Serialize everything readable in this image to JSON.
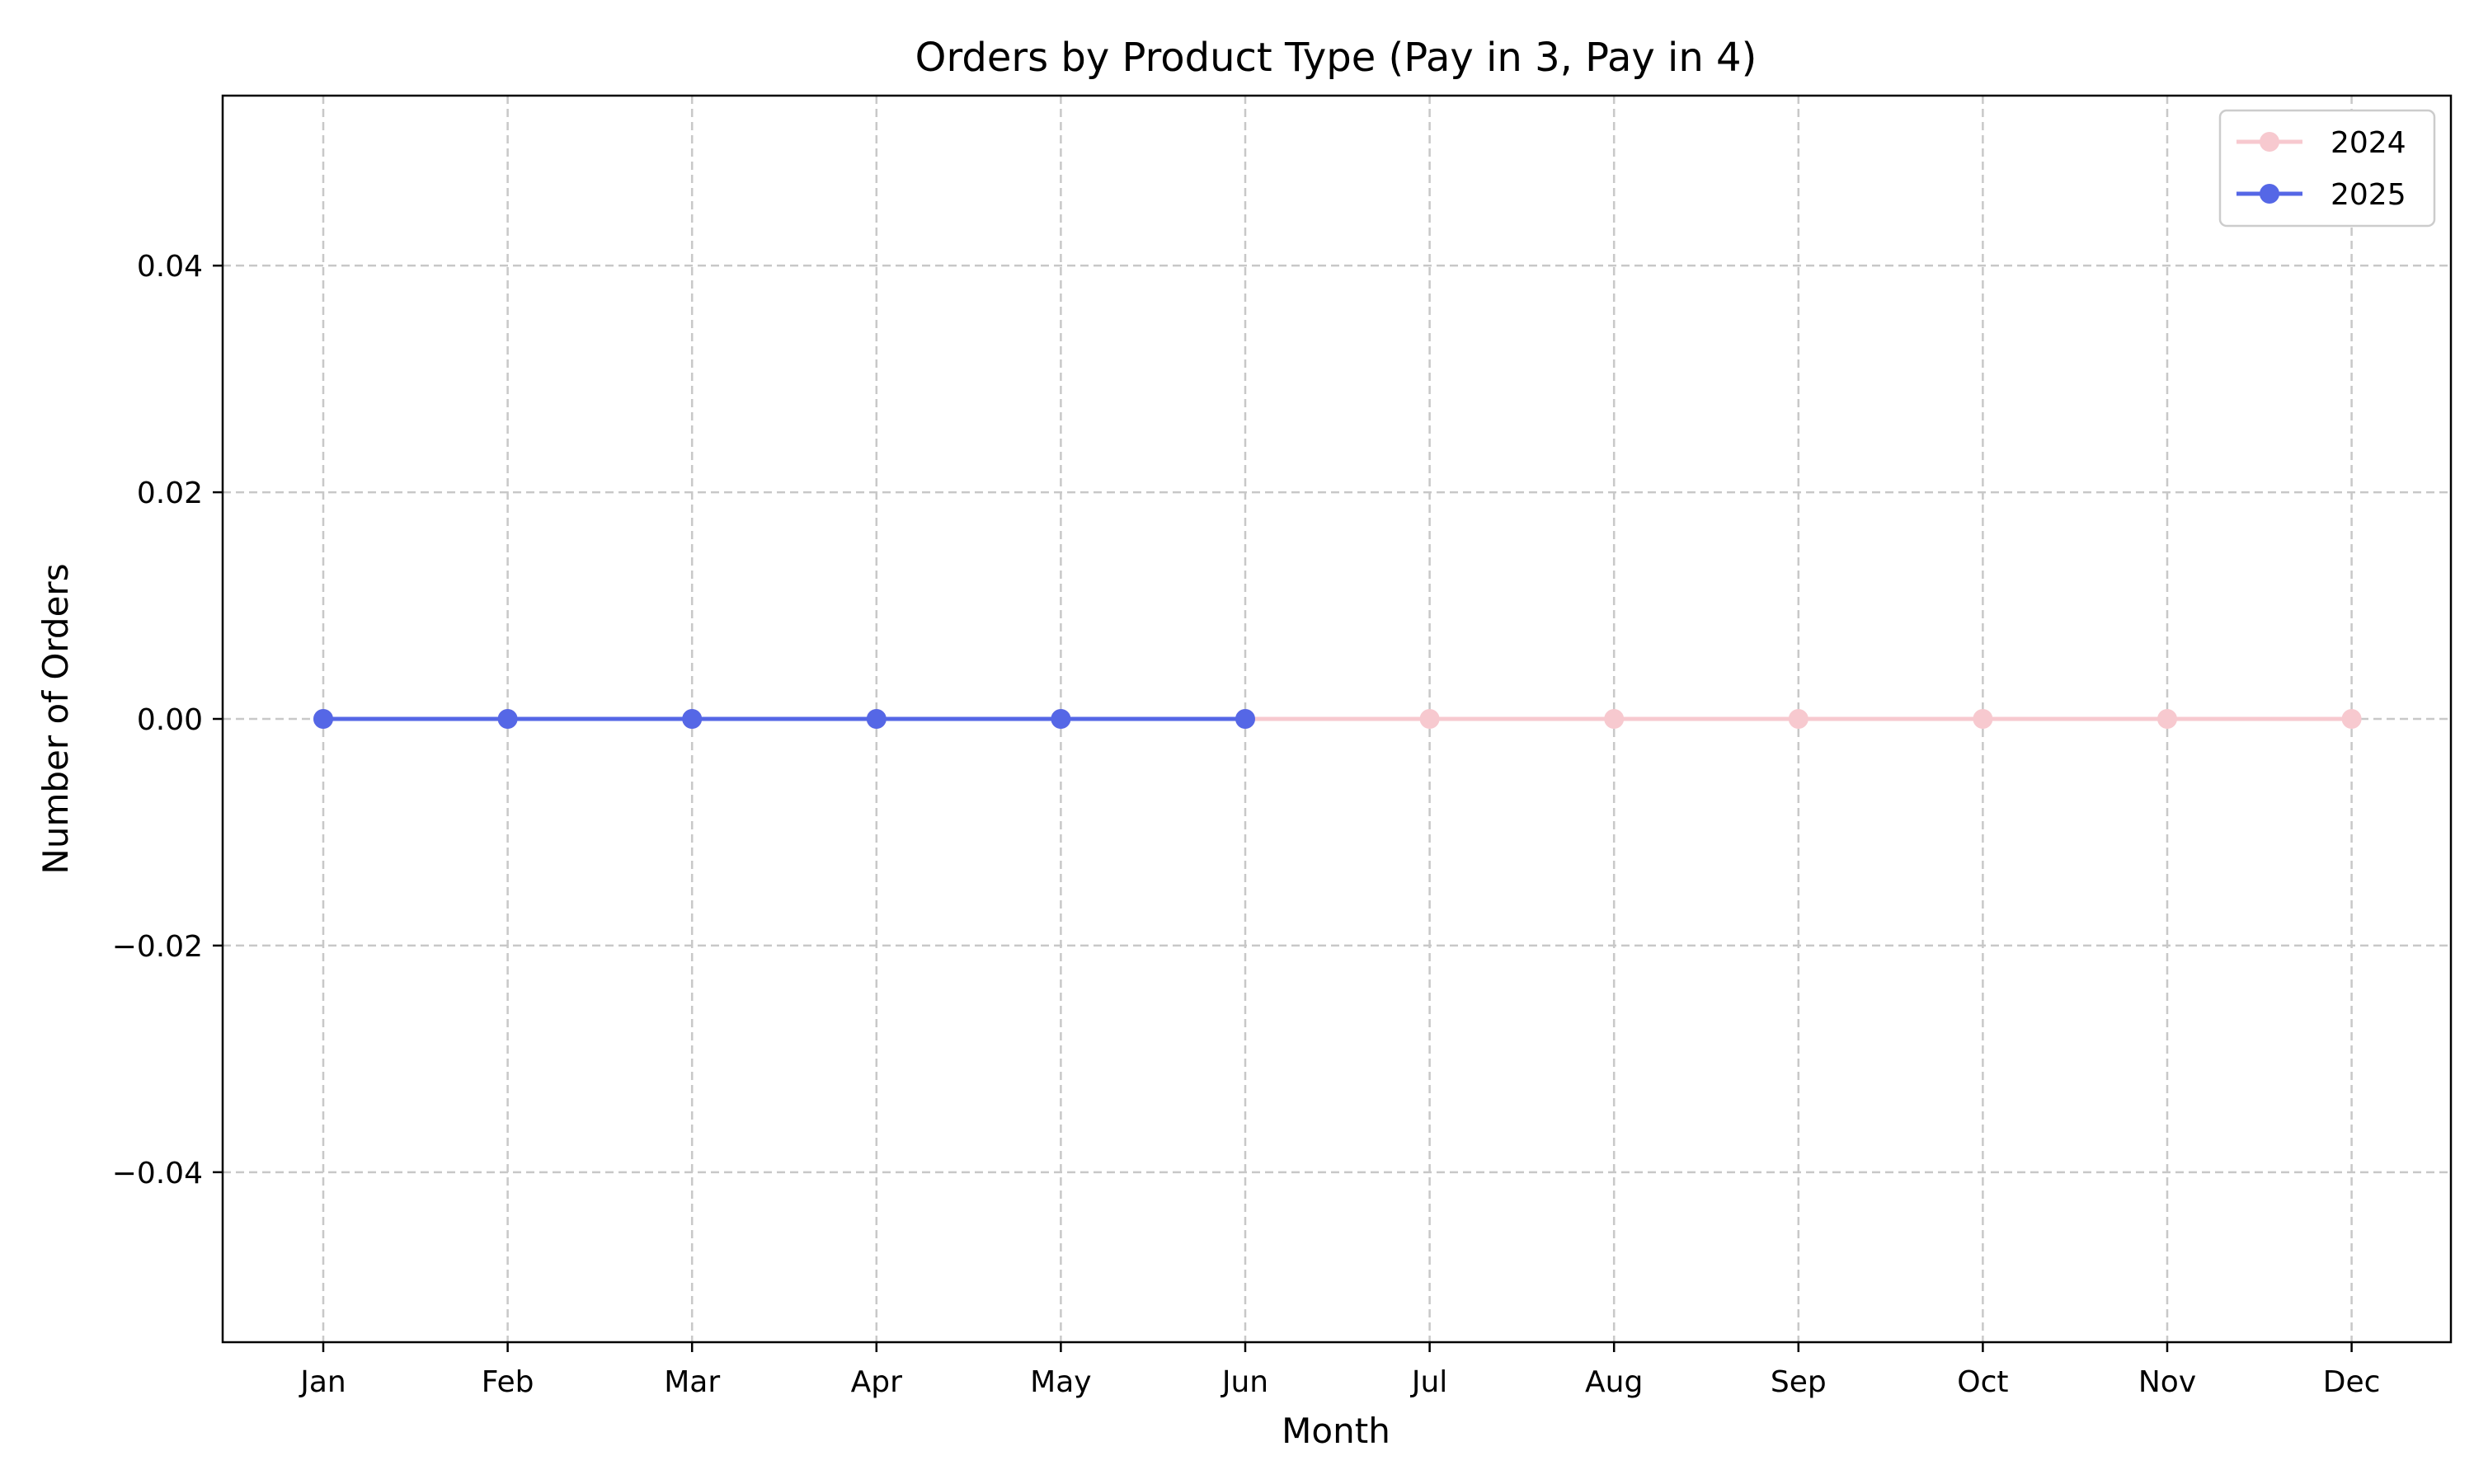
{
  "chart_data": {
    "type": "line",
    "title": "Orders by Product Type (Pay in 3, Pay in 4)",
    "xlabel": "Month",
    "ylabel": "Number of Orders",
    "categories": [
      "Jan",
      "Feb",
      "Mar",
      "Apr",
      "May",
      "Jun",
      "Jul",
      "Aug",
      "Sep",
      "Oct",
      "Nov",
      "Dec"
    ],
    "ylim": [
      -0.055,
      0.055
    ],
    "yticks": [
      -0.04,
      -0.02,
      0.0,
      0.02,
      0.04
    ],
    "ytick_labels": [
      "−0.04",
      "−0.02",
      "0.00",
      "0.02",
      "0.04"
    ],
    "grid": true,
    "legend_position": "top-right",
    "series": [
      {
        "name": "2024",
        "color": "#f7c9cf",
        "values": [
          0,
          0,
          0,
          0,
          0,
          0,
          0,
          0,
          0,
          0,
          0,
          0
        ]
      },
      {
        "name": "2025",
        "color": "#5567e6",
        "values": [
          0,
          0,
          0,
          0,
          0,
          0,
          null,
          null,
          null,
          null,
          null,
          null
        ]
      }
    ]
  }
}
